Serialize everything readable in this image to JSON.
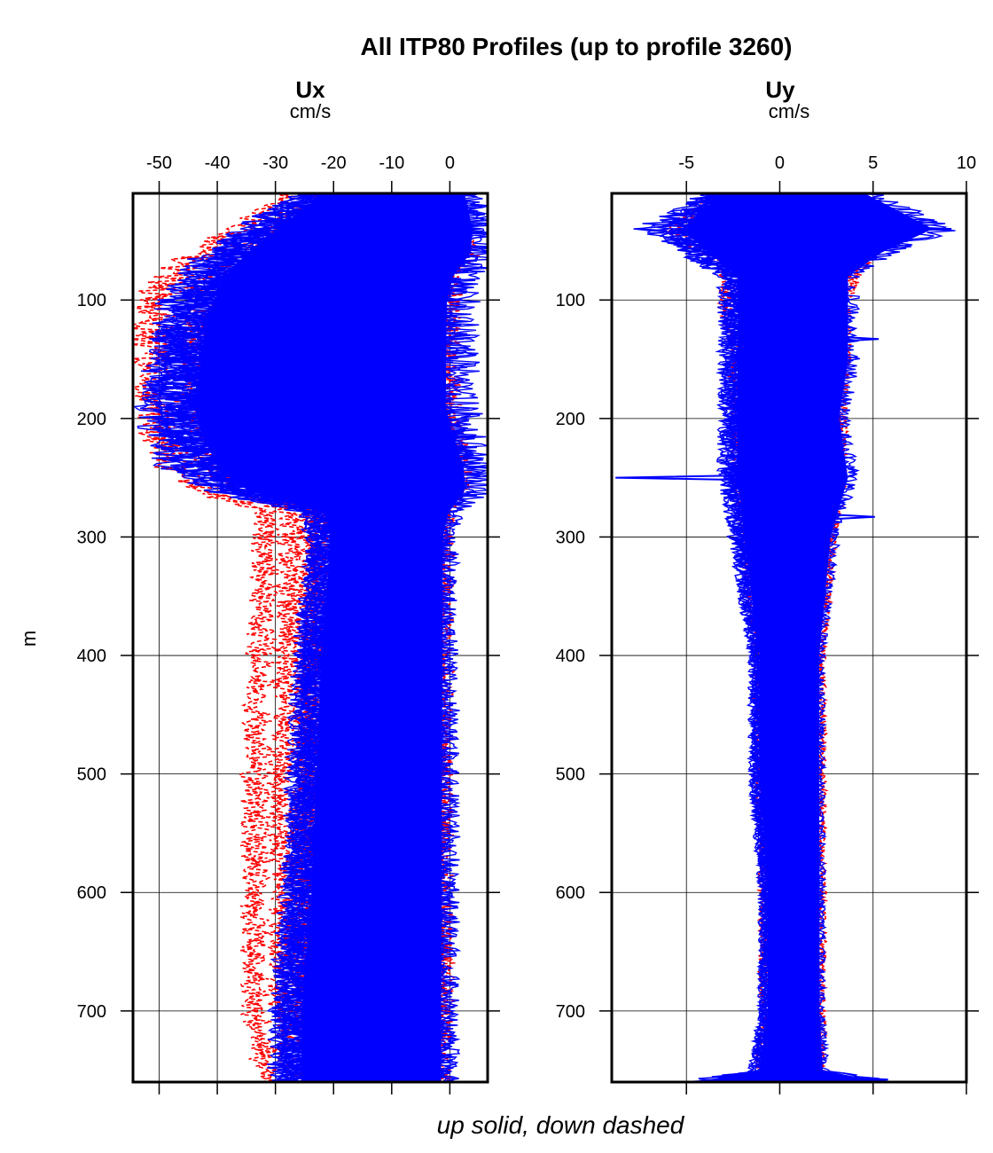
{
  "chart_data": {
    "type": "line",
    "title": "All ITP80 Profiles (up to profile 3260)",
    "footer": "up solid, down dashed",
    "ylabel": "m",
    "ylim": [
      10,
      760
    ],
    "yticks": [
      "100",
      "200",
      "300",
      "400",
      "500",
      "600",
      "700"
    ],
    "legend_colors": {
      "up": "#0000ff",
      "down": "#ff0000"
    },
    "panels": [
      {
        "name": "Ux",
        "units": "cm/s",
        "xlim": [
          -54.5,
          6.5
        ],
        "xticks": [
          "-50",
          "-40",
          "-30",
          "-20",
          "-10",
          "0"
        ],
        "envelope": {
          "depth": [
            10,
            40,
            60,
            80,
            100,
            130,
            160,
            190,
            210,
            240,
            260,
            280,
            300,
            400,
            500,
            600,
            700,
            760
          ],
          "up_min": [
            -26,
            -36,
            -42,
            -46,
            -48,
            -50,
            -51,
            -52,
            -51,
            -48,
            -42,
            -25,
            -24,
            -26,
            -27,
            -28,
            -30,
            -30
          ],
          "up_max": [
            4,
            6,
            6,
            3,
            2,
            2,
            2,
            2,
            3,
            5,
            5,
            1,
            0,
            0,
            0,
            0,
            0,
            0
          ],
          "down_min": [
            -28,
            -38,
            -45,
            -50,
            -53,
            -53,
            -53,
            -53,
            -52,
            -50,
            -44,
            -33,
            -33,
            -34,
            -35,
            -35,
            -35,
            -33
          ],
          "down_max": [
            2,
            3,
            4,
            2,
            1,
            1,
            1,
            1,
            2,
            3,
            3,
            0,
            0,
            0,
            0,
            0,
            0,
            0
          ]
        },
        "typical": {
          "depth": [
            10,
            60,
            100,
            150,
            200,
            250,
            260,
            300,
            400,
            500,
            600,
            700,
            760
          ],
          "profiles": [
            [
              -2,
              -4,
              -6,
              -8,
              -8,
              -6,
              -4,
              -3,
              -3,
              -3,
              -3,
              -3,
              -3
            ],
            [
              -8,
              -14,
              -20,
              -24,
              -24,
              -18,
              -12,
              -10,
              -9,
              -9,
              -9,
              -9,
              -9
            ],
            [
              -15,
              -24,
              -34,
              -40,
              -41,
              -30,
              -22,
              -20,
              -20,
              -20,
              -20,
              -20,
              -20
            ],
            [
              -20,
              -32,
              -44,
              -49,
              -50,
              -40,
              -26,
              -24,
              -25,
              -26,
              -27,
              -28,
              -29
            ]
          ]
        }
      },
      {
        "name": "Uy",
        "units": "cm/s",
        "xlim": [
          -9,
          10
        ],
        "xticks": [
          "-5",
          "0",
          "5",
          "10"
        ],
        "envelope": {
          "depth": [
            10,
            40,
            60,
            80,
            100,
            150,
            200,
            250,
            300,
            400,
            500,
            600,
            700,
            750,
            760
          ],
          "up_min": [
            -4,
            -7,
            -5,
            -3,
            -3,
            -3,
            -3,
            -3,
            -2.5,
            -1.5,
            -1.5,
            -1,
            -1,
            -1.5,
            -5
          ],
          "up_max": [
            5,
            9,
            6,
            4,
            4,
            4,
            3.5,
            4,
            3,
            2.3,
            2.3,
            2.3,
            2.3,
            2.5,
            6
          ],
          "down_min": [
            -3.5,
            -6,
            -4,
            -3,
            -3,
            -2.5,
            -2.5,
            -2.5,
            -2,
            -1.3,
            -1.2,
            -1,
            -1,
            -1.2,
            -2
          ],
          "down_max": [
            4,
            7,
            5,
            4,
            3.5,
            3.5,
            3.3,
            3.3,
            2.8,
            2.3,
            2.3,
            2.3,
            2.3,
            2.3,
            3
          ]
        },
        "typical": {
          "depth": [
            10,
            60,
            100,
            150,
            200,
            250,
            300,
            400,
            500,
            600,
            700,
            760
          ],
          "profiles": [
            [
              1,
              1,
              0.5,
              0.5,
              0.5,
              0.5,
              0.7,
              0.8,
              0.8,
              0.8,
              0.8,
              0.8
            ],
            [
              0,
              -1,
              -1,
              -1,
              -0.5,
              0,
              0.2,
              0.4,
              0.4,
              0.4,
              0.4,
              0.4
            ]
          ]
        },
        "spikes": [
          {
            "depth": 250,
            "value": -8.8
          },
          {
            "depth": 40,
            "value": 9.2
          },
          {
            "depth": 133,
            "value": 5.3
          },
          {
            "depth": 283,
            "value": 5.1
          },
          {
            "depth": 758,
            "value": 5.8
          }
        ]
      }
    ]
  }
}
